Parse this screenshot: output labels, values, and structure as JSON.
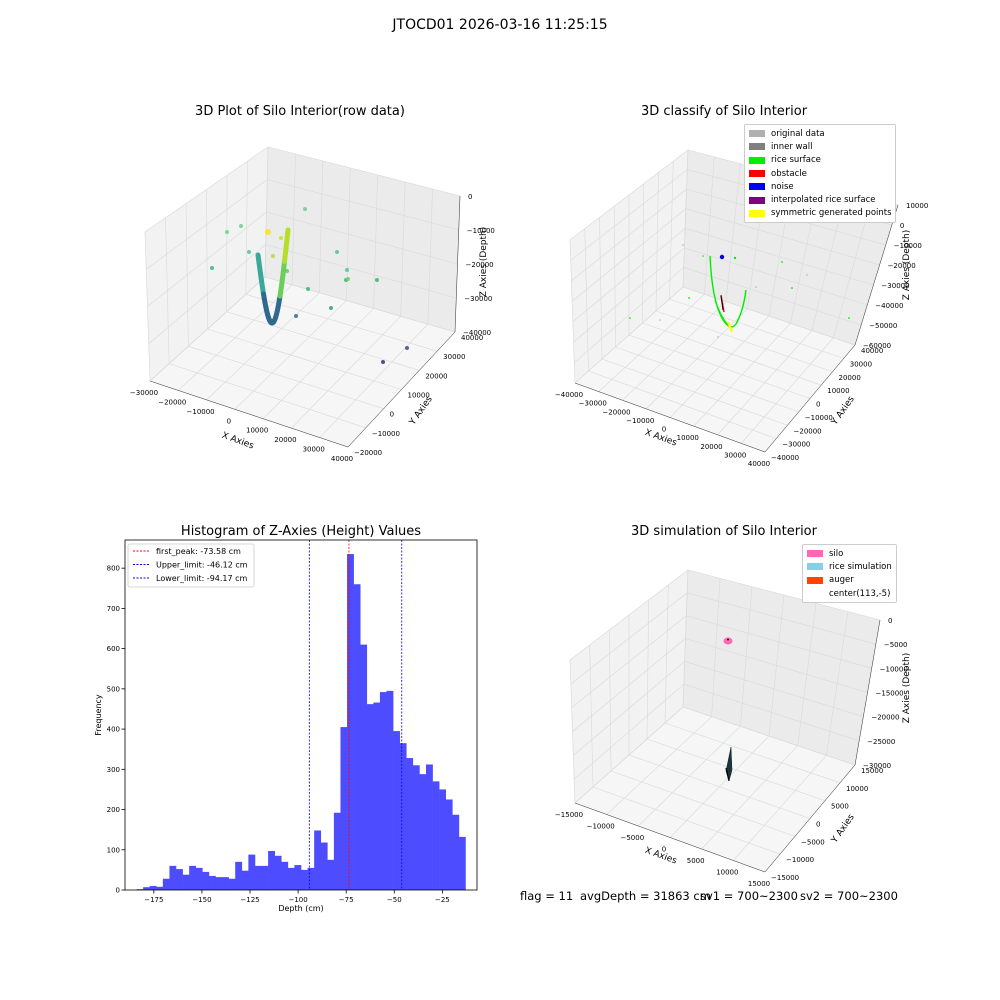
{
  "header": {
    "title": "JTOCD01 2026-03-16 11:25:15"
  },
  "colors": {
    "grid": "#d9d9d9",
    "pane_left": "#f2f2f2",
    "pane_right": "#ebebeb",
    "pane_floor": "#f6f6f6",
    "hist_bar": "#4d4dff",
    "viridis": [
      "#440154",
      "#31688e",
      "#35b779",
      "#fde725"
    ]
  },
  "panels": {
    "raw": {
      "title": "3D Plot of Silo Interior(row data)",
      "x_label": "X Axies",
      "y_label": "Y Axies",
      "z_label": "Z Axies (Depth)",
      "x_ticks": [
        "−30000",
        "−20000",
        "−10000",
        "0",
        "10000",
        "20000",
        "30000",
        "40000"
      ],
      "y_ticks": [
        "−20000",
        "−10000",
        "0",
        "10000",
        "20000",
        "30000",
        "40000"
      ],
      "z_ticks": [
        "0",
        "−10000",
        "−20000",
        "−30000",
        "−40000"
      ]
    },
    "classify": {
      "title": "3D classify of Silo Interior",
      "x_label": "X Axies",
      "y_label": "Y Axies",
      "z_label": "Z Axies (Depth)",
      "x_ticks": [
        "−40000",
        "−30000",
        "−20000",
        "−10000",
        "0",
        "10000",
        "20000",
        "30000",
        "40000"
      ],
      "y_ticks": [
        "−40000",
        "−30000",
        "−20000",
        "−10000",
        "0",
        "10000",
        "20000",
        "30000",
        "40000"
      ],
      "z_ticks": [
        "10000",
        "0",
        "−10000",
        "−20000",
        "−30000",
        "−40000",
        "−50000",
        "−60000"
      ],
      "legend": [
        {
          "label": "original data",
          "color": "#b0b0b0"
        },
        {
          "label": "inner wall",
          "color": "#808080"
        },
        {
          "label": "rice surface",
          "color": "#00ee00"
        },
        {
          "label": "obstacle",
          "color": "#ff0000"
        },
        {
          "label": "noise",
          "color": "#0000ee"
        },
        {
          "label": "interpolated rice surface",
          "color": "#800080"
        },
        {
          "label": "symmetric generated points",
          "color": "#ffff00"
        }
      ]
    },
    "simulation": {
      "title": "3D simulation of Silo Interior",
      "x_label": "X Axies",
      "y_label": "Y Axies",
      "z_label": "Z Axies (Depth)",
      "x_ticks": [
        "−15000",
        "−10000",
        "−5000",
        "0",
        "5000",
        "10000",
        "15000"
      ],
      "y_ticks": [
        "−15000",
        "−10000",
        "−5000",
        "0",
        "5000",
        "10000",
        "15000"
      ],
      "z_ticks": [
        "0",
        "−5000",
        "−10000",
        "−15000",
        "−20000",
        "−25000",
        "−30000"
      ],
      "legend": [
        {
          "label": "silo",
          "color": "#ff69b4"
        },
        {
          "label": "rice simulation",
          "color": "#87ceeb"
        },
        {
          "label": "auger",
          "color": "#ff4500"
        },
        {
          "label": "center(113,-5)",
          "color": ""
        }
      ]
    }
  },
  "status": {
    "flag": "flag = 11",
    "avg_depth": "avgDepth = 31863 cm",
    "sv1": "sv1 = 700~2300",
    "sv2": "sv2 = 700~2300"
  },
  "chart_data": {
    "type": "bar",
    "title": "Histogram of Z-Axies (Height) Values",
    "xlabel": "Depth (cm)",
    "ylabel": "Frequency",
    "xlim": [
      -190,
      -7
    ],
    "ylim": [
      0,
      870
    ],
    "x_ticks": [
      -175,
      -150,
      -125,
      -100,
      -75,
      -50,
      -25
    ],
    "x_tick_labels": [
      "−175",
      "−150",
      "−125",
      "−100",
      "−75",
      "−50",
      "−25"
    ],
    "y_ticks": [
      0,
      100,
      200,
      300,
      400,
      500,
      600,
      700,
      800
    ],
    "bin_start": -184,
    "bin_width": 3.42,
    "counts": [
      2,
      7,
      10,
      8,
      28,
      60,
      52,
      38,
      60,
      55,
      45,
      35,
      32,
      32,
      28,
      70,
      48,
      88,
      60,
      60,
      97,
      85,
      70,
      55,
      62,
      50,
      55,
      148,
      118,
      75,
      192,
      405,
      835,
      760,
      610,
      462,
      466,
      492,
      495,
      395,
      365,
      328,
      310,
      288,
      312,
      270,
      250,
      225,
      187,
      132
    ],
    "lines": [
      {
        "label": "first_peak: -73.58 cm",
        "x": -73.58,
        "color": "#ff0000"
      },
      {
        "label": "Upper_limit: -46.12 cm",
        "x": -46.12,
        "color": "#0000ff"
      },
      {
        "label": "Lower_limit: -94.17 cm",
        "x": -94.17,
        "color": "#0000ff"
      }
    ],
    "legend_position": "upper-left",
    "grid": false
  }
}
